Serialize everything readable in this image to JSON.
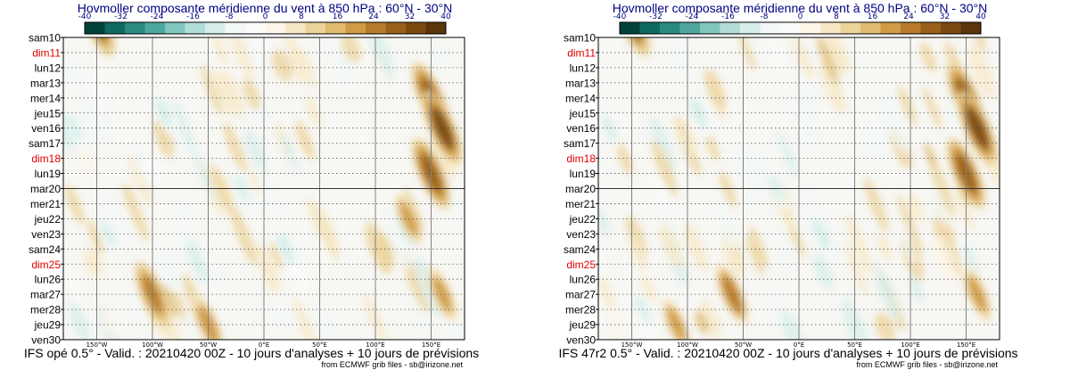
{
  "colorbar": {
    "ticks": [
      "-40",
      "-32",
      "-24",
      "-16",
      "-8",
      "0",
      "8",
      "16",
      "24",
      "32",
      "40"
    ],
    "colors": [
      "#01433b",
      "#0f6a61",
      "#2a8a82",
      "#4ea79f",
      "#80c6bd",
      "#b2ddd7",
      "#d6eeea",
      "#f2f8f7",
      "#fbfbfb",
      "#fdf6e8",
      "#f7e8c5",
      "#ecd39a",
      "#dfba70",
      "#cf9b47",
      "#b77b2b",
      "#986019",
      "#7a4a11",
      "#5a340b"
    ]
  },
  "panels": [
    {
      "title": "Hovmoller composante méridienne du vent à 850 hPa : 60°N - 30°N",
      "footer": "IFS opé 0.5° - Valid. : 20210420 00Z - 10 jours d'analyses + 10 jours de prévisions",
      "credit": "from ECMWF grib files - sb@irizone.net"
    },
    {
      "title": "Hovmoller composante méridienne du vent à 850 hPa : 60°N - 30°N",
      "footer": "IFS 47r2 0.5° - Valid. : 20210420 00Z - 10 jours d'analyses + 10 jours de prévisions",
      "credit": "from ECMWF grib files - sb@irizone.net"
    }
  ],
  "chart_data": [
    {
      "type": "heatmap",
      "title": "Hovmoller composante méridienne du vent à 850 hPa : 60°N - 30°N",
      "x_tick_labels": [
        "150°W",
        "100°W",
        "50°W",
        "0°E",
        "50°E",
        "100°E",
        "150°E"
      ],
      "x_ticks": [
        -150,
        -100,
        -50,
        0,
        50,
        100,
        150
      ],
      "xlim": [
        -180,
        180
      ],
      "y_tick_labels": [
        "sam10",
        "dim11",
        "lun12",
        "mar13",
        "mer14",
        "jeu15",
        "ven16",
        "sam17",
        "dim18",
        "lun19",
        "mar20",
        "mer21",
        "jeu22",
        "ven23",
        "sam24",
        "dim25",
        "lun26",
        "mar27",
        "mer28",
        "jeu29",
        "ven30"
      ],
      "weekend_labels": [
        "dim11",
        "dim18",
        "dim25"
      ],
      "analysis_forecast_split": "mar20",
      "colorbar_range": [
        -40,
        40
      ],
      "features": [
        {
          "lon": -150,
          "day": "mar21",
          "value": 28
        },
        {
          "lon": 150,
          "day": "mer14",
          "value": 30
        },
        {
          "lon": 150,
          "day": "lun19",
          "value": 30
        },
        {
          "lon": -100,
          "day": "mar27",
          "value": 26
        },
        {
          "lon": -50,
          "day": "jeu29",
          "value": 22
        },
        {
          "lon": 160,
          "day": "ven16",
          "value": 32
        },
        {
          "lon": 130,
          "day": "jeu22",
          "value": 18
        },
        {
          "lon": 160,
          "day": "mar27",
          "value": 20
        },
        {
          "lon": -90,
          "day": "jeu15",
          "value": -12
        },
        {
          "lon": -20,
          "day": "mar20",
          "value": -10
        },
        {
          "lon": 20,
          "day": "sam24",
          "value": -12
        },
        {
          "lon": -170,
          "day": "ven16",
          "value": -10
        },
        {
          "lon": -140,
          "day": "ven23",
          "value": -10
        }
      ]
    },
    {
      "type": "heatmap",
      "title": "Hovmoller composante méridienne du vent à 850 hPa : 60°N - 30°N",
      "x_tick_labels": [
        "150°W",
        "100°W",
        "50°W",
        "0°E",
        "50°E",
        "100°E",
        "150°E"
      ],
      "x_ticks": [
        -150,
        -100,
        -50,
        0,
        50,
        100,
        150
      ],
      "xlim": [
        -180,
        180
      ],
      "y_tick_labels": [
        "sam10",
        "dim11",
        "lun12",
        "mar13",
        "mer14",
        "jeu15",
        "ven16",
        "sam17",
        "dim18",
        "lun19",
        "mar20",
        "mer21",
        "jeu22",
        "ven23",
        "sam24",
        "dim25",
        "lun26",
        "mar27",
        "mer28",
        "jeu29",
        "ven30"
      ],
      "weekend_labels": [
        "dim11",
        "dim18",
        "dim25"
      ],
      "analysis_forecast_split": "mar20",
      "colorbar_range": [
        -40,
        40
      ],
      "features": [
        {
          "lon": -150,
          "day": "mar21",
          "value": 28
        },
        {
          "lon": 150,
          "day": "mer14",
          "value": 30
        },
        {
          "lon": 150,
          "day": "lun19",
          "value": 30
        },
        {
          "lon": -60,
          "day": "mar27",
          "value": 24
        },
        {
          "lon": -110,
          "day": "jeu29",
          "value": 18
        },
        {
          "lon": 160,
          "day": "ven16",
          "value": 32
        },
        {
          "lon": 160,
          "day": "mar27",
          "value": 20
        },
        {
          "lon": -90,
          "day": "jeu15",
          "value": -12
        },
        {
          "lon": -20,
          "day": "mar20",
          "value": -10
        },
        {
          "lon": 20,
          "day": "ven23",
          "value": -12
        },
        {
          "lon": -170,
          "day": "ven16",
          "value": -10
        },
        {
          "lon": -140,
          "day": "mer28",
          "value": -10
        }
      ]
    }
  ]
}
